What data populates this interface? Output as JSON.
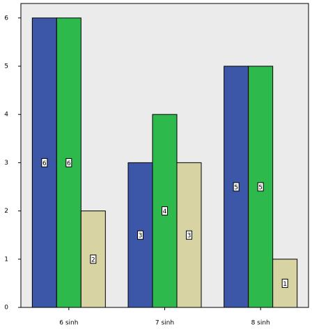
{
  "chart_data": {
    "type": "bar",
    "categories": [
      "6 sinh",
      "7 sinh",
      "8 sinh"
    ],
    "series": [
      {
        "color": "#3c56a8",
        "values": [
          6,
          3,
          5
        ]
      },
      {
        "color": "#2eb94c",
        "values": [
          6,
          4,
          5
        ]
      },
      {
        "color": "#d7d3a3",
        "values": [
          2,
          3,
          1
        ]
      }
    ],
    "ylim": [
      0,
      6.3
    ],
    "yticks": [
      0,
      1,
      2,
      3,
      4,
      5,
      6
    ],
    "grid": false
  }
}
